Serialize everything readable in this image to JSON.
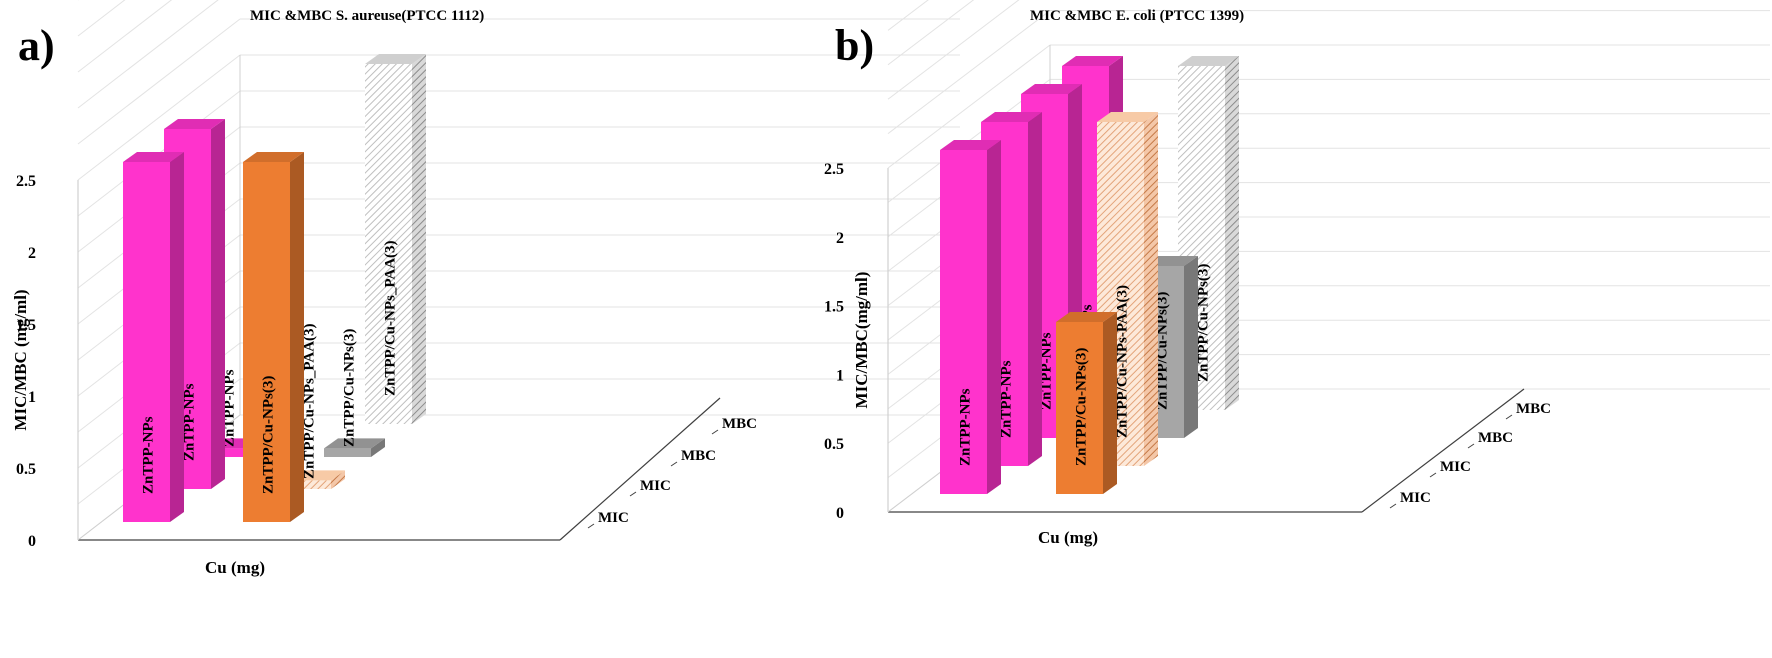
{
  "chart_data": [
    {
      "panel": "a)",
      "type": "bar",
      "subtype": "3d-column",
      "title": "MIC &MBC  S. aureuse(PTCC 1112)",
      "xlabel": "Cu (mg)",
      "ylabel": "MIC/MBC (mg/ml)",
      "ylim": [
        0,
        2.5
      ],
      "yticks": [
        "0",
        "0.5",
        "1",
        "1.5",
        "2",
        "2.5"
      ],
      "depth_rows": [
        "MIC",
        "MIC",
        "MBC",
        "MBC"
      ],
      "bars": [
        {
          "label": "ZnTPP-NPs",
          "row": 0,
          "col": 0,
          "value": 2.5,
          "color": "#ff33cc",
          "pattern": "solid"
        },
        {
          "label": "ZnTPP-NPs",
          "row": 1,
          "col": 0,
          "value": 2.5,
          "color": "#ff33cc",
          "pattern": "solid"
        },
        {
          "label": "ZnTPP-NPs",
          "row": 2,
          "col": 0,
          "value": 0.06,
          "color": "#ff33cc",
          "pattern": "solid"
        },
        {
          "label": "ZnTPP/Cu-NPs(3)",
          "row": 0,
          "col": 1,
          "value": 2.5,
          "color": "#ed7d31",
          "pattern": "solid"
        },
        {
          "label": "ZnTPP/Cu-NPs_PAA(3)",
          "row": 1,
          "col": 1,
          "value": 0.06,
          "color": "#f4b183",
          "pattern": "hatch"
        },
        {
          "label": "ZnTPP/Cu-NPs(3)",
          "row": 2,
          "col": 1,
          "value": 0.06,
          "color": "#a6a6a6",
          "pattern": "solid"
        },
        {
          "label": "ZnTPP/Cu-NPs_PAA(3)",
          "row": 3,
          "col": 1,
          "value": 2.5,
          "color": "#bfbfbf",
          "pattern": "hatch"
        }
      ]
    },
    {
      "panel": "b)",
      "type": "bar",
      "subtype": "3d-column",
      "title": "MIC &MBC  E. coli (PTCC 1399)",
      "xlabel": "Cu (mg)",
      "ylabel": "MIC/MBC(mg/ml)",
      "ylim": [
        0,
        2.5
      ],
      "yticks": [
        "0",
        "0.5",
        "1",
        "1.5",
        "2",
        "2.5"
      ],
      "depth_rows": [
        "MIC",
        "MIC",
        "MBC",
        "MBC"
      ],
      "bars": [
        {
          "label": "ZnTPP-NPs",
          "row": 0,
          "col": 0,
          "value": 2.5,
          "color": "#ff33cc",
          "pattern": "solid"
        },
        {
          "label": "ZnTPP-NPs",
          "row": 1,
          "col": 0,
          "value": 2.5,
          "color": "#ff33cc",
          "pattern": "solid"
        },
        {
          "label": "ZnTPP-NPs",
          "row": 2,
          "col": 0,
          "value": 2.5,
          "color": "#ff33cc",
          "pattern": "solid"
        },
        {
          "label": "ZnTPP-NPs",
          "row": 3,
          "col": 0,
          "value": 2.5,
          "color": "#ff33cc",
          "pattern": "solid"
        },
        {
          "label": "ZnTPP/Cu-NPs(3)",
          "row": 0,
          "col": 1,
          "value": 1.25,
          "color": "#ed7d31",
          "pattern": "solid"
        },
        {
          "label": "ZnTPP/Cu-NPs-PAA(3)",
          "row": 1,
          "col": 1,
          "value": 2.5,
          "color": "#f4b183",
          "pattern": "hatch"
        },
        {
          "label": "ZnTPP/Cu-NPs(3)",
          "row": 2,
          "col": 1,
          "value": 1.25,
          "color": "#a6a6a6",
          "pattern": "solid"
        },
        {
          "label": "ZnTPP/Cu-NPs(3)",
          "row": 3,
          "col": 1,
          "value": 2.5,
          "color": "#bfbfbf",
          "pattern": "hatch"
        }
      ]
    }
  ]
}
